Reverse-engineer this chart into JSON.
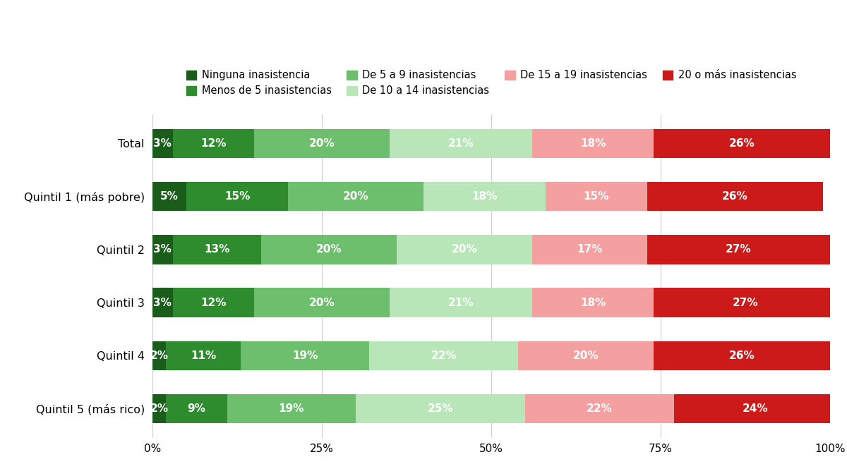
{
  "categories": [
    "Total",
    "Quintil 1 (más pobre)",
    "Quintil 2",
    "Quintil 3",
    "Quintil 4",
    "Quintil 5 (más rico)"
  ],
  "series": [
    {
      "label": "Ninguna inasistencia",
      "color": "#1a5c1a",
      "values": [
        3,
        5,
        3,
        3,
        2,
        2
      ]
    },
    {
      "label": "Menos de 5 inasistencias",
      "color": "#2e8b2e",
      "values": [
        12,
        15,
        13,
        12,
        11,
        9
      ]
    },
    {
      "label": "De 5 a 9 inasistencias",
      "color": "#6dbf6d",
      "values": [
        20,
        20,
        20,
        20,
        19,
        19
      ]
    },
    {
      "label": "De 10 a 14 inasistencias",
      "color": "#b8e6b8",
      "values": [
        21,
        18,
        20,
        21,
        22,
        25
      ]
    },
    {
      "label": "De 15 a 19 inasistencias",
      "color": "#f4a0a0",
      "values": [
        18,
        15,
        17,
        18,
        20,
        22
      ]
    },
    {
      "label": "20 o más inasistencias",
      "color": "#cc1a1a",
      "values": [
        26,
        26,
        27,
        27,
        26,
        24
      ]
    }
  ],
  "background_color": "#ffffff",
  "grid_color": "#cccccc",
  "bar_height": 0.55,
  "xticks": [
    0,
    25,
    50,
    75,
    100
  ],
  "xtick_labels": [
    "0%",
    "25%",
    "50%",
    "75%",
    "100%"
  ],
  "text_color_light": "#ffffff",
  "legend_fontsize": 10.5,
  "tick_fontsize": 11,
  "label_fontsize": 11.5,
  "bar_label_fontsize": 11
}
